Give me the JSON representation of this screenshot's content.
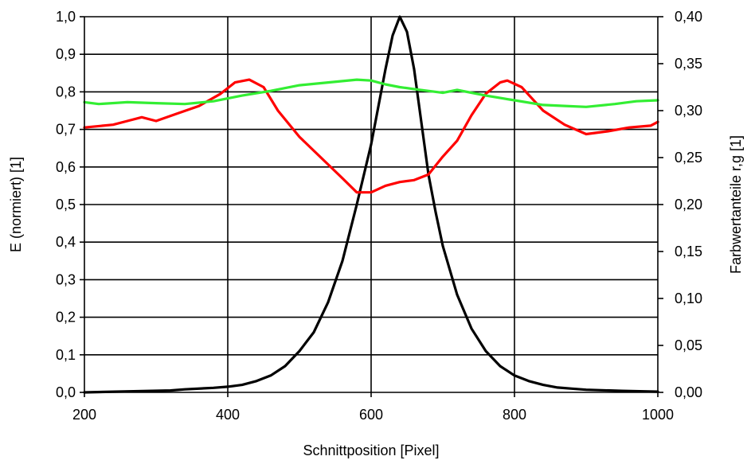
{
  "chart_data": {
    "type": "line",
    "xlabel": "Schnittposition [Pixel]",
    "ylabel_left": "E (normiert) [1]",
    "ylabel_right": "Farbwertanteile r,g [1]",
    "xlim": [
      200,
      1000
    ],
    "ylim_left": [
      0,
      1.0
    ],
    "ylim_right": [
      0,
      0.4
    ],
    "x_ticks": [
      "200",
      "400",
      "600",
      "800",
      "1000"
    ],
    "y_left_ticks": [
      "0,0",
      "0,1",
      "0,2",
      "0,3",
      "0,4",
      "0,5",
      "0,6",
      "0,7",
      "0,8",
      "0,9",
      "1,0"
    ],
    "y_right_ticks": [
      "0,00",
      "0,05",
      "0,10",
      "0,15",
      "0,20",
      "0,25",
      "0,30",
      "0,35",
      "0,40"
    ],
    "grid": true,
    "series": [
      {
        "axis": "left",
        "color": "#000000",
        "x": [
          200,
          320,
          340,
          380,
          400,
          420,
          440,
          460,
          480,
          500,
          520,
          540,
          560,
          580,
          600,
          610,
          620,
          630,
          640,
          650,
          660,
          670,
          680,
          690,
          700,
          720,
          740,
          760,
          780,
          800,
          820,
          840,
          860,
          880,
          900,
          950,
          1000
        ],
        "values": [
          0.0,
          0.005,
          0.008,
          0.012,
          0.015,
          0.02,
          0.03,
          0.045,
          0.07,
          0.11,
          0.16,
          0.24,
          0.35,
          0.5,
          0.66,
          0.76,
          0.86,
          0.95,
          1.0,
          0.96,
          0.86,
          0.72,
          0.58,
          0.48,
          0.39,
          0.26,
          0.17,
          0.11,
          0.07,
          0.045,
          0.03,
          0.02,
          0.013,
          0.01,
          0.007,
          0.004,
          0.002
        ]
      },
      {
        "axis": "right",
        "color": "#ff0000",
        "x": [
          200,
          240,
          260,
          280,
          300,
          330,
          360,
          390,
          410,
          430,
          450,
          470,
          500,
          530,
          560,
          580,
          600,
          620,
          640,
          660,
          680,
          700,
          720,
          740,
          760,
          780,
          790,
          810,
          840,
          870,
          900,
          930,
          960,
          990,
          1000
        ],
        "values": [
          0.282,
          0.285,
          0.289,
          0.293,
          0.289,
          0.297,
          0.305,
          0.318,
          0.33,
          0.333,
          0.325,
          0.3,
          0.272,
          0.25,
          0.228,
          0.213,
          0.213,
          0.22,
          0.224,
          0.226,
          0.232,
          0.251,
          0.268,
          0.295,
          0.318,
          0.33,
          0.332,
          0.325,
          0.3,
          0.285,
          0.275,
          0.278,
          0.282,
          0.284,
          0.288
        ]
      },
      {
        "axis": "right",
        "color": "#33ee33",
        "x": [
          200,
          220,
          260,
          300,
          340,
          380,
          420,
          460,
          500,
          540,
          580,
          600,
          620,
          640,
          660,
          700,
          720,
          760,
          800,
          840,
          870,
          900,
          940,
          970,
          1000
        ],
        "values": [
          0.309,
          0.307,
          0.309,
          0.308,
          0.307,
          0.31,
          0.316,
          0.321,
          0.327,
          0.33,
          0.333,
          0.332,
          0.328,
          0.325,
          0.323,
          0.319,
          0.322,
          0.316,
          0.311,
          0.306,
          0.305,
          0.304,
          0.307,
          0.31,
          0.311
        ]
      }
    ]
  }
}
